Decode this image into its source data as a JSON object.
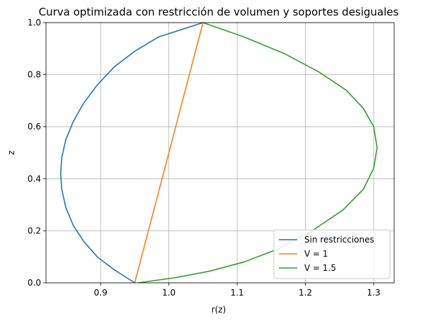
{
  "chart_data": {
    "type": "line",
    "title": "Curva optimizada con restricción de volumen y soportes desiguales",
    "xlabel": "r(z)",
    "ylabel": "z",
    "xlim": [
      0.82,
      1.33
    ],
    "ylim": [
      0.0,
      1.0
    ],
    "xticks": [
      "0.9",
      "1.0",
      "1.1",
      "1.2",
      "1.3"
    ],
    "yticks": [
      "0.0",
      "0.2",
      "0.4",
      "0.6",
      "0.8",
      "1.0"
    ],
    "grid": true,
    "legend_position": "lower-right",
    "series": [
      {
        "name": "Sin restricciones",
        "color": "#1f77b4",
        "x": [
          0.95,
          0.92,
          0.895,
          0.875,
          0.86,
          0.849,
          0.843,
          0.8415,
          0.843,
          0.849,
          0.86,
          0.875,
          0.895,
          0.92,
          0.95,
          0.985,
          1.05
        ],
        "y": [
          0.0,
          0.05,
          0.1,
          0.16,
          0.22,
          0.29,
          0.36,
          0.42,
          0.48,
          0.55,
          0.62,
          0.69,
          0.76,
          0.83,
          0.89,
          0.945,
          1.0
        ]
      },
      {
        "name": "V = 1",
        "color": "#ff7f0e",
        "x": [
          0.95,
          1.05
        ],
        "y": [
          0.0,
          1.0
        ]
      },
      {
        "name": "V = 1.5",
        "color": "#2ca02c",
        "x": [
          0.955,
          1.01,
          1.06,
          1.11,
          1.16,
          1.21,
          1.255,
          1.285,
          1.3,
          1.305,
          1.3,
          1.285,
          1.26,
          1.22,
          1.17,
          1.11,
          1.05
        ],
        "y": [
          0.0,
          0.02,
          0.045,
          0.08,
          0.13,
          0.2,
          0.28,
          0.36,
          0.44,
          0.52,
          0.6,
          0.67,
          0.74,
          0.81,
          0.88,
          0.945,
          1.0
        ]
      }
    ]
  }
}
